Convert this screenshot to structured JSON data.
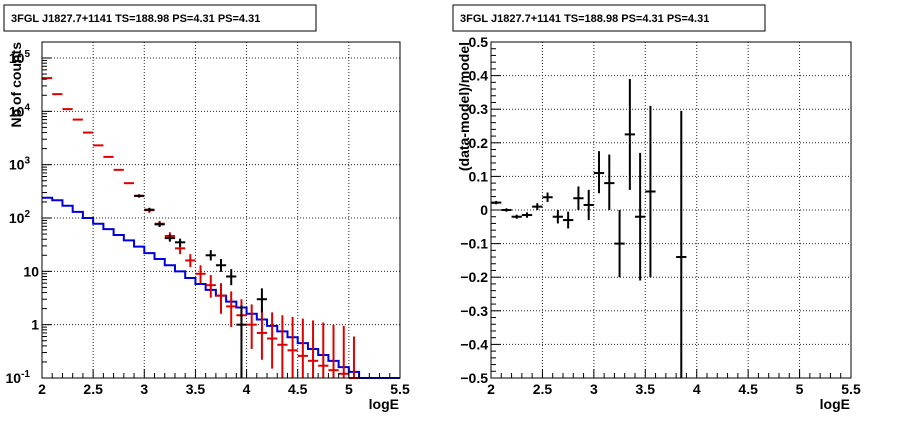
{
  "chart_data": [
    {
      "type": "line",
      "title": "3FGL J1827.7+1141 TS=188.98 PS=4.31 PS=4.31",
      "xlabel": "logE",
      "ylabel": "Nb of counts",
      "xlim": [
        2,
        5.5
      ],
      "ylim": [
        0.1,
        200000
      ],
      "yscale": "log",
      "grid": true,
      "x_ticks": [
        "2",
        "2.5",
        "3",
        "3.5",
        "4",
        "4.5",
        "5",
        "5.5"
      ],
      "y_ticks": [
        {
          "base": "10",
          "exp": "-1"
        },
        {
          "base": "1",
          "exp": ""
        },
        {
          "base": "10",
          "exp": ""
        },
        {
          "base": "10",
          "exp": "2"
        },
        {
          "base": "10",
          "exp": "3"
        },
        {
          "base": "10",
          "exp": "4"
        },
        {
          "base": "10",
          "exp": "5"
        }
      ],
      "series": [
        {
          "kind": "step",
          "color": "#0000dd",
          "x_edges": [
            2.0,
            2.1,
            2.2,
            2.3,
            2.4,
            2.5,
            2.6,
            2.7,
            2.8,
            2.9,
            3.0,
            3.1,
            3.2,
            3.3,
            3.4,
            3.5,
            3.6,
            3.7,
            3.8,
            3.9,
            4.0,
            4.1,
            4.2,
            4.3,
            4.4,
            4.5,
            4.6,
            4.7,
            4.8,
            4.9,
            5.0,
            5.1,
            5.2,
            5.3,
            5.4,
            5.5
          ],
          "values": [
            240,
            215,
            170,
            130,
            100,
            78,
            62,
            48,
            38,
            29,
            22,
            17,
            13,
            10,
            7.5,
            5.8,
            4.5,
            3.5,
            2.7,
            2.1,
            1.6,
            1.25,
            0.95,
            0.75,
            0.58,
            0.45,
            0.35,
            0.27,
            0.21,
            0.16,
            0.13,
            0.1,
            0.1,
            0.1,
            0.1
          ]
        },
        {
          "kind": "model-points",
          "color": "#dd0000",
          "points": [
            {
              "x": 2.05,
              "y": 42000,
              "lo": 42000,
              "hi": 42000
            },
            {
              "x": 2.15,
              "y": 21000,
              "lo": 21000,
              "hi": 21000
            },
            {
              "x": 2.25,
              "y": 11000,
              "lo": 11000,
              "hi": 11000
            },
            {
              "x": 2.35,
              "y": 7000,
              "lo": 7000,
              "hi": 7000
            },
            {
              "x": 2.45,
              "y": 4000,
              "lo": 4000,
              "hi": 4000
            },
            {
              "x": 2.55,
              "y": 2300,
              "lo": 2300,
              "hi": 2300
            },
            {
              "x": 2.65,
              "y": 1400,
              "lo": 1400,
              "hi": 1400
            },
            {
              "x": 2.75,
              "y": 800,
              "lo": 800,
              "hi": 800
            },
            {
              "x": 2.85,
              "y": 450,
              "lo": 450,
              "hi": 450
            },
            {
              "x": 2.95,
              "y": 260,
              "lo": 240,
              "hi": 280
            },
            {
              "x": 3.05,
              "y": 140,
              "lo": 125,
              "hi": 155
            },
            {
              "x": 3.15,
              "y": 78,
              "lo": 68,
              "hi": 88
            },
            {
              "x": 3.25,
              "y": 46,
              "lo": 38,
              "hi": 54
            },
            {
              "x": 3.35,
              "y": 27,
              "lo": 21,
              "hi": 33
            },
            {
              "x": 3.45,
              "y": 16,
              "lo": 12,
              "hi": 21
            },
            {
              "x": 3.55,
              "y": 9,
              "lo": 6,
              "hi": 13
            },
            {
              "x": 3.65,
              "y": 5.5,
              "lo": 3.2,
              "hi": 8.5
            },
            {
              "x": 3.75,
              "y": 3.5,
              "lo": 1.6,
              "hi": 6
            },
            {
              "x": 3.85,
              "y": 2.2,
              "lo": 0.9,
              "hi": 4.2
            },
            {
              "x": 3.95,
              "y": 1.5,
              "lo": 0.5,
              "hi": 3
            },
            {
              "x": 4.05,
              "y": 1.0,
              "lo": 0.35,
              "hi": 2.4
            },
            {
              "x": 4.15,
              "y": 0.7,
              "lo": 0.22,
              "hi": 2.0
            },
            {
              "x": 4.25,
              "y": 0.55,
              "lo": 0.15,
              "hi": 1.7
            },
            {
              "x": 4.35,
              "y": 0.42,
              "lo": 0.1,
              "hi": 1.5
            },
            {
              "x": 4.45,
              "y": 0.33,
              "lo": 0.1,
              "hi": 1.4
            },
            {
              "x": 4.55,
              "y": 0.26,
              "lo": 0.1,
              "hi": 1.3
            },
            {
              "x": 4.65,
              "y": 0.21,
              "lo": 0.1,
              "hi": 1.2
            },
            {
              "x": 4.75,
              "y": 0.17,
              "lo": 0.1,
              "hi": 1.1
            },
            {
              "x": 4.85,
              "y": 0.14,
              "lo": 0.1,
              "hi": 1.0
            },
            {
              "x": 4.95,
              "y": 0.12,
              "lo": 0.1,
              "hi": 0.95
            },
            {
              "x": 5.05,
              "y": 0.1,
              "lo": 0.1,
              "hi": 0.6
            }
          ]
        },
        {
          "kind": "data-points",
          "color": "#000000",
          "points": [
            {
              "x": 2.95,
              "y": 260,
              "lo": 245,
              "hi": 275
            },
            {
              "x": 3.05,
              "y": 143,
              "lo": 132,
              "hi": 155
            },
            {
              "x": 3.15,
              "y": 76,
              "lo": 68,
              "hi": 85
            },
            {
              "x": 3.25,
              "y": 42,
              "lo": 36,
              "hi": 49
            },
            {
              "x": 3.35,
              "y": 35,
              "lo": 29,
              "hi": 41
            },
            {
              "x": 3.65,
              "y": 20,
              "lo": 16,
              "hi": 25
            },
            {
              "x": 3.75,
              "y": 13,
              "lo": 9.8,
              "hi": 17
            },
            {
              "x": 3.85,
              "y": 8,
              "lo": 5.5,
              "hi": 11
            },
            {
              "x": 3.95,
              "y": 1.0,
              "lo": 0.1,
              "hi": 2.3
            },
            {
              "x": 4.15,
              "y": 3,
              "lo": 1.7,
              "hi": 4.8
            }
          ]
        }
      ]
    },
    {
      "type": "scatter",
      "title": "3FGL J1827.7+1141 TS=188.98 PS=4.31 PS=4.31",
      "xlabel": "logE",
      "ylabel": "(data-model)/model",
      "xlim": [
        2,
        5.5
      ],
      "ylim": [
        -0.5,
        0.5
      ],
      "grid": true,
      "x_ticks": [
        "2",
        "2.5",
        "3",
        "3.5",
        "4",
        "4.5",
        "5",
        "5.5"
      ],
      "y_ticks": [
        "−0.5",
        "−0.4",
        "−0.3",
        "−0.2",
        "−0.1",
        "0",
        "0.1",
        "0.2",
        "0.3",
        "0.4",
        "0.5"
      ],
      "series": [
        {
          "kind": "residuals",
          "color": "#000000",
          "points": [
            {
              "x": 2.05,
              "y": 0.022,
              "lo": 0.017,
              "hi": 0.027
            },
            {
              "x": 2.15,
              "y": 0.0,
              "lo": -0.005,
              "hi": 0.005
            },
            {
              "x": 2.25,
              "y": -0.02,
              "lo": -0.026,
              "hi": -0.014
            },
            {
              "x": 2.35,
              "y": -0.015,
              "lo": -0.023,
              "hi": -0.007
            },
            {
              "x": 2.45,
              "y": 0.01,
              "lo": 0.0,
              "hi": 0.02
            },
            {
              "x": 2.55,
              "y": 0.038,
              "lo": 0.024,
              "hi": 0.052
            },
            {
              "x": 2.65,
              "y": -0.02,
              "lo": -0.04,
              "hi": 0.0
            },
            {
              "x": 2.75,
              "y": -0.03,
              "lo": -0.055,
              "hi": -0.005
            },
            {
              "x": 2.85,
              "y": 0.035,
              "lo": 0.0,
              "hi": 0.07
            },
            {
              "x": 2.95,
              "y": 0.015,
              "lo": -0.03,
              "hi": 0.06
            },
            {
              "x": 3.05,
              "y": 0.11,
              "lo": 0.05,
              "hi": 0.175
            },
            {
              "x": 3.15,
              "y": 0.08,
              "lo": 0.0,
              "hi": 0.165
            },
            {
              "x": 3.25,
              "y": -0.1,
              "lo": -0.2,
              "hi": 0.0
            },
            {
              "x": 3.35,
              "y": 0.225,
              "lo": 0.06,
              "hi": 0.39
            },
            {
              "x": 3.45,
              "y": -0.02,
              "lo": -0.21,
              "hi": 0.17
            },
            {
              "x": 3.55,
              "y": 0.055,
              "lo": -0.2,
              "hi": 0.31
            },
            {
              "x": 3.85,
              "y": -0.14,
              "lo": -0.5,
              "hi": 0.295
            }
          ]
        }
      ]
    }
  ]
}
